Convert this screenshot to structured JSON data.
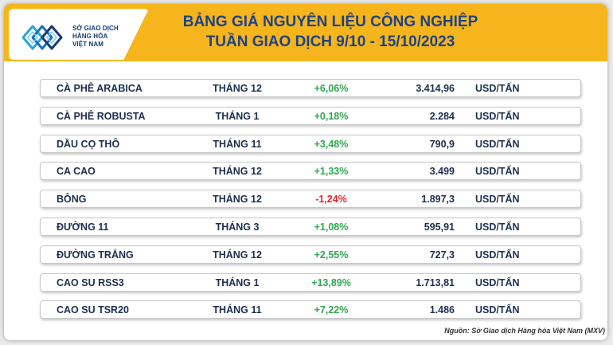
{
  "logo": {
    "lines": [
      "SỞ GIAO DỊCH",
      "HÀNG HÓA",
      "VIỆT NAM"
    ]
  },
  "header": {
    "title_line1": "BẢNG GIÁ NGUYÊN LIỆU CÔNG NGHIỆP",
    "title_line2": "TUẦN GIAO DỊCH 9/10 - 15/10/2023"
  },
  "colors": {
    "header_band": "#f6b51d",
    "title_text": "#1c4287",
    "positive": "#2fa84f",
    "negative": "#e3262b"
  },
  "rows": [
    {
      "name": "CÀ PHÊ ARABICA",
      "month": "THÁNG 12",
      "change": "+6,06%",
      "price": "3.414,96",
      "unit": "USD/TẤN"
    },
    {
      "name": "CÀ PHÊ ROBUSTA",
      "month": "THÁNG 1",
      "change": "+0,18%",
      "price": "2.284",
      "unit": "USD/TẤN"
    },
    {
      "name": "DẦU CỌ THÔ",
      "month": "THÁNG 11",
      "change": "+3,48%",
      "price": "790,9",
      "unit": "USD/TẤN"
    },
    {
      "name": "CA CAO",
      "month": "THÁNG 12",
      "change": "+1,33%",
      "price": "3.499",
      "unit": "USD/TẤN"
    },
    {
      "name": "BÔNG",
      "month": "THÁNG 12",
      "change": "-1,24%",
      "price": "1.897,3",
      "unit": "USD/TẤN"
    },
    {
      "name": "ĐƯỜNG 11",
      "month": "THÁNG 3",
      "change": "+1,08%",
      "price": "595,91",
      "unit": "USD/TẤN"
    },
    {
      "name": "ĐƯỜNG TRẮNG",
      "month": "THÁNG 12",
      "change": "+2,55%",
      "price": "727,3",
      "unit": "USD/TẤN"
    },
    {
      "name": "CAO SU RSS3",
      "month": "THÁNG 1",
      "change": "+13,89%",
      "price": "1.713,81",
      "unit": "USD/TẤN"
    },
    {
      "name": "CAO SU TSR20",
      "month": "THÁNG 11",
      "change": "+7,22%",
      "price": "1.486",
      "unit": "USD/TẤN"
    }
  ],
  "footer": {
    "source": "Nguồn: Sở Giao dịch Hàng hóa Việt Nam (MXV)"
  }
}
